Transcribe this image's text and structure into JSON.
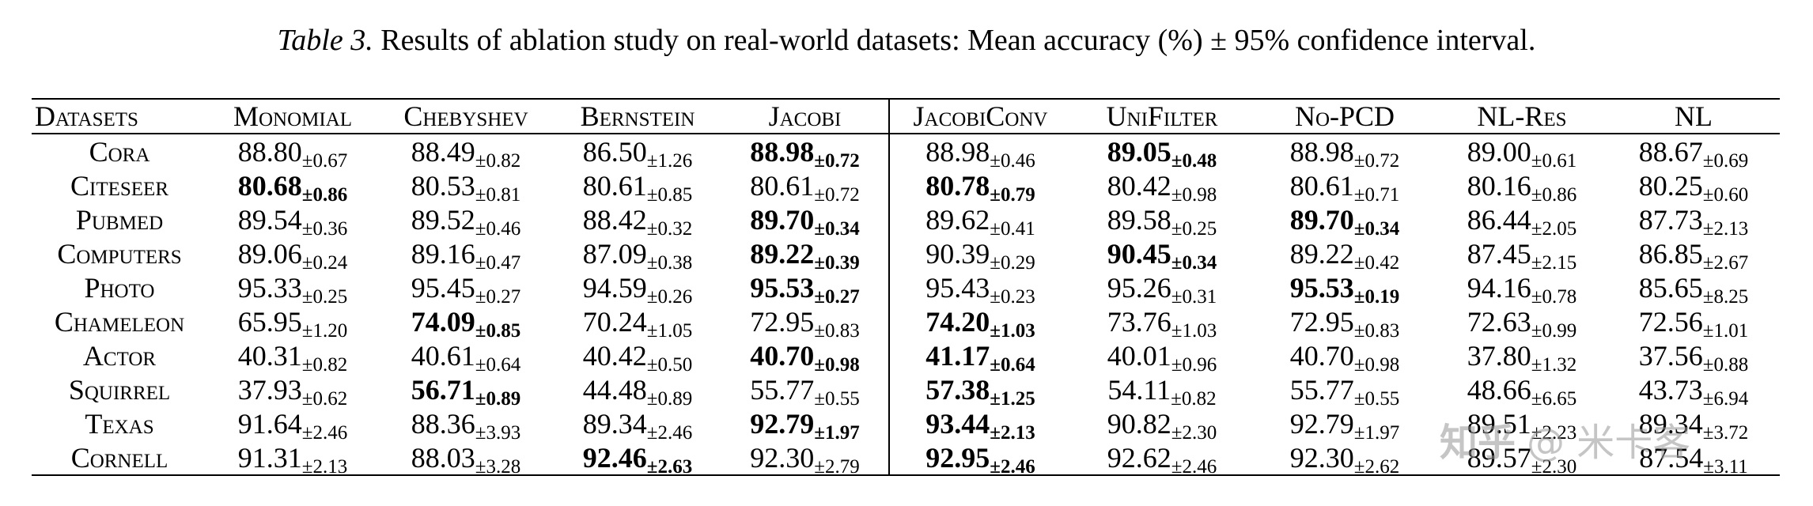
{
  "caption": {
    "label": "Table 3.",
    "text": "Results of ablation study on real-world datasets: Mean accuracy (%) ± 95% confidence interval."
  },
  "table": {
    "headers": [
      "Datasets",
      "Monomial",
      "Chebyshev",
      "Bernstein",
      "Jacobi",
      "JacobiConv",
      "UniFilter",
      "No-PCD",
      "NL-Res",
      "NL"
    ],
    "rows": [
      {
        "dataset": "Cora",
        "cells": [
          {
            "mean": "88.80",
            "ci": "±0.67",
            "bold": false
          },
          {
            "mean": "88.49",
            "ci": "±0.82",
            "bold": false
          },
          {
            "mean": "86.50",
            "ci": "±1.26",
            "bold": false
          },
          {
            "mean": "88.98",
            "ci": "±0.72",
            "bold": true
          },
          {
            "mean": "88.98",
            "ci": "±0.46",
            "bold": false
          },
          {
            "mean": "89.05",
            "ci": "±0.48",
            "bold": true
          },
          {
            "mean": "88.98",
            "ci": "±0.72",
            "bold": false
          },
          {
            "mean": "89.00",
            "ci": "±0.61",
            "bold": false
          },
          {
            "mean": "88.67",
            "ci": "±0.69",
            "bold": false
          }
        ]
      },
      {
        "dataset": "Citeseer",
        "cells": [
          {
            "mean": "80.68",
            "ci": "±0.86",
            "bold": true
          },
          {
            "mean": "80.53",
            "ci": "±0.81",
            "bold": false
          },
          {
            "mean": "80.61",
            "ci": "±0.85",
            "bold": false
          },
          {
            "mean": "80.61",
            "ci": "±0.72",
            "bold": false
          },
          {
            "mean": "80.78",
            "ci": "±0.79",
            "bold": true
          },
          {
            "mean": "80.42",
            "ci": "±0.98",
            "bold": false
          },
          {
            "mean": "80.61",
            "ci": "±0.71",
            "bold": false
          },
          {
            "mean": "80.16",
            "ci": "±0.86",
            "bold": false
          },
          {
            "mean": "80.25",
            "ci": "±0.60",
            "bold": false
          }
        ]
      },
      {
        "dataset": "Pubmed",
        "cells": [
          {
            "mean": "89.54",
            "ci": "±0.36",
            "bold": false
          },
          {
            "mean": "89.52",
            "ci": "±0.46",
            "bold": false
          },
          {
            "mean": "88.42",
            "ci": "±0.32",
            "bold": false
          },
          {
            "mean": "89.70",
            "ci": "±0.34",
            "bold": true
          },
          {
            "mean": "89.62",
            "ci": "±0.41",
            "bold": false
          },
          {
            "mean": "89.58",
            "ci": "±0.25",
            "bold": false
          },
          {
            "mean": "89.70",
            "ci": "±0.34",
            "bold": true
          },
          {
            "mean": "86.44",
            "ci": "±2.05",
            "bold": false
          },
          {
            "mean": "87.73",
            "ci": "±2.13",
            "bold": false
          }
        ]
      },
      {
        "dataset": "Computers",
        "cells": [
          {
            "mean": "89.06",
            "ci": "±0.24",
            "bold": false
          },
          {
            "mean": "89.16",
            "ci": "±0.47",
            "bold": false
          },
          {
            "mean": "87.09",
            "ci": "±0.38",
            "bold": false
          },
          {
            "mean": "89.22",
            "ci": "±0.39",
            "bold": true
          },
          {
            "mean": "90.39",
            "ci": "±0.29",
            "bold": false
          },
          {
            "mean": "90.45",
            "ci": "±0.34",
            "bold": true
          },
          {
            "mean": "89.22",
            "ci": "±0.42",
            "bold": false
          },
          {
            "mean": "87.45",
            "ci": "±2.15",
            "bold": false
          },
          {
            "mean": "86.85",
            "ci": "±2.67",
            "bold": false
          }
        ]
      },
      {
        "dataset": "Photo",
        "cells": [
          {
            "mean": "95.33",
            "ci": "±0.25",
            "bold": false
          },
          {
            "mean": "95.45",
            "ci": "±0.27",
            "bold": false
          },
          {
            "mean": "94.59",
            "ci": "±0.26",
            "bold": false
          },
          {
            "mean": "95.53",
            "ci": "±0.27",
            "bold": true
          },
          {
            "mean": "95.43",
            "ci": "±0.23",
            "bold": false
          },
          {
            "mean": "95.26",
            "ci": "±0.31",
            "bold": false
          },
          {
            "mean": "95.53",
            "ci": "±0.19",
            "bold": true
          },
          {
            "mean": "94.16",
            "ci": "±0.78",
            "bold": false
          },
          {
            "mean": "85.65",
            "ci": "±8.25",
            "bold": false
          }
        ]
      },
      {
        "dataset": "Chameleon",
        "cells": [
          {
            "mean": "65.95",
            "ci": "±1.20",
            "bold": false
          },
          {
            "mean": "74.09",
            "ci": "±0.85",
            "bold": true
          },
          {
            "mean": "70.24",
            "ci": "±1.05",
            "bold": false
          },
          {
            "mean": "72.95",
            "ci": "±0.83",
            "bold": false
          },
          {
            "mean": "74.20",
            "ci": "±1.03",
            "bold": true
          },
          {
            "mean": "73.76",
            "ci": "±1.03",
            "bold": false
          },
          {
            "mean": "72.95",
            "ci": "±0.83",
            "bold": false
          },
          {
            "mean": "72.63",
            "ci": "±0.99",
            "bold": false
          },
          {
            "mean": "72.56",
            "ci": "±1.01",
            "bold": false
          }
        ]
      },
      {
        "dataset": "Actor",
        "cells": [
          {
            "mean": "40.31",
            "ci": "±0.82",
            "bold": false
          },
          {
            "mean": "40.61",
            "ci": "±0.64",
            "bold": false
          },
          {
            "mean": "40.42",
            "ci": "±0.50",
            "bold": false
          },
          {
            "mean": "40.70",
            "ci": "±0.98",
            "bold": true
          },
          {
            "mean": "41.17",
            "ci": "±0.64",
            "bold": true
          },
          {
            "mean": "40.01",
            "ci": "±0.96",
            "bold": false
          },
          {
            "mean": "40.70",
            "ci": "±0.98",
            "bold": false
          },
          {
            "mean": "37.80",
            "ci": "±1.32",
            "bold": false
          },
          {
            "mean": "37.56",
            "ci": "±0.88",
            "bold": false
          }
        ]
      },
      {
        "dataset": "Squirrel",
        "cells": [
          {
            "mean": "37.93",
            "ci": "±0.62",
            "bold": false
          },
          {
            "mean": "56.71",
            "ci": "±0.89",
            "bold": true
          },
          {
            "mean": "44.48",
            "ci": "±0.89",
            "bold": false
          },
          {
            "mean": "55.77",
            "ci": "±0.55",
            "bold": false
          },
          {
            "mean": "57.38",
            "ci": "±1.25",
            "bold": true
          },
          {
            "mean": "54.11",
            "ci": "±0.82",
            "bold": false
          },
          {
            "mean": "55.77",
            "ci": "±0.55",
            "bold": false
          },
          {
            "mean": "48.66",
            "ci": "±6.65",
            "bold": false
          },
          {
            "mean": "43.73",
            "ci": "±6.94",
            "bold": false
          }
        ]
      },
      {
        "dataset": "Texas",
        "cells": [
          {
            "mean": "91.64",
            "ci": "±2.46",
            "bold": false
          },
          {
            "mean": "88.36",
            "ci": "±3.93",
            "bold": false
          },
          {
            "mean": "89.34",
            "ci": "±2.46",
            "bold": false
          },
          {
            "mean": "92.79",
            "ci": "±1.97",
            "bold": true
          },
          {
            "mean": "93.44",
            "ci": "±2.13",
            "bold": true
          },
          {
            "mean": "90.82",
            "ci": "±2.30",
            "bold": false
          },
          {
            "mean": "92.79",
            "ci": "±1.97",
            "bold": false
          },
          {
            "mean": "89.51",
            "ci": "±2.23",
            "bold": false
          },
          {
            "mean": "89.34",
            "ci": "±3.72",
            "bold": false
          }
        ]
      },
      {
        "dataset": "Cornell",
        "cells": [
          {
            "mean": "91.31",
            "ci": "±2.13",
            "bold": false
          },
          {
            "mean": "88.03",
            "ci": "±3.28",
            "bold": false
          },
          {
            "mean": "92.46",
            "ci": "±2.63",
            "bold": true
          },
          {
            "mean": "92.30",
            "ci": "±2.79",
            "bold": false
          },
          {
            "mean": "92.95",
            "ci": "±2.46",
            "bold": true
          },
          {
            "mean": "92.62",
            "ci": "±2.46",
            "bold": false
          },
          {
            "mean": "92.30",
            "ci": "±2.62",
            "bold": false
          },
          {
            "mean": "89.57",
            "ci": "±2.30",
            "bold": false
          },
          {
            "mean": "87.54",
            "ci": "±3.11",
            "bold": false
          }
        ]
      }
    ]
  },
  "watermark": {
    "logo": "知乎",
    "handle": "@ 米卡客"
  }
}
